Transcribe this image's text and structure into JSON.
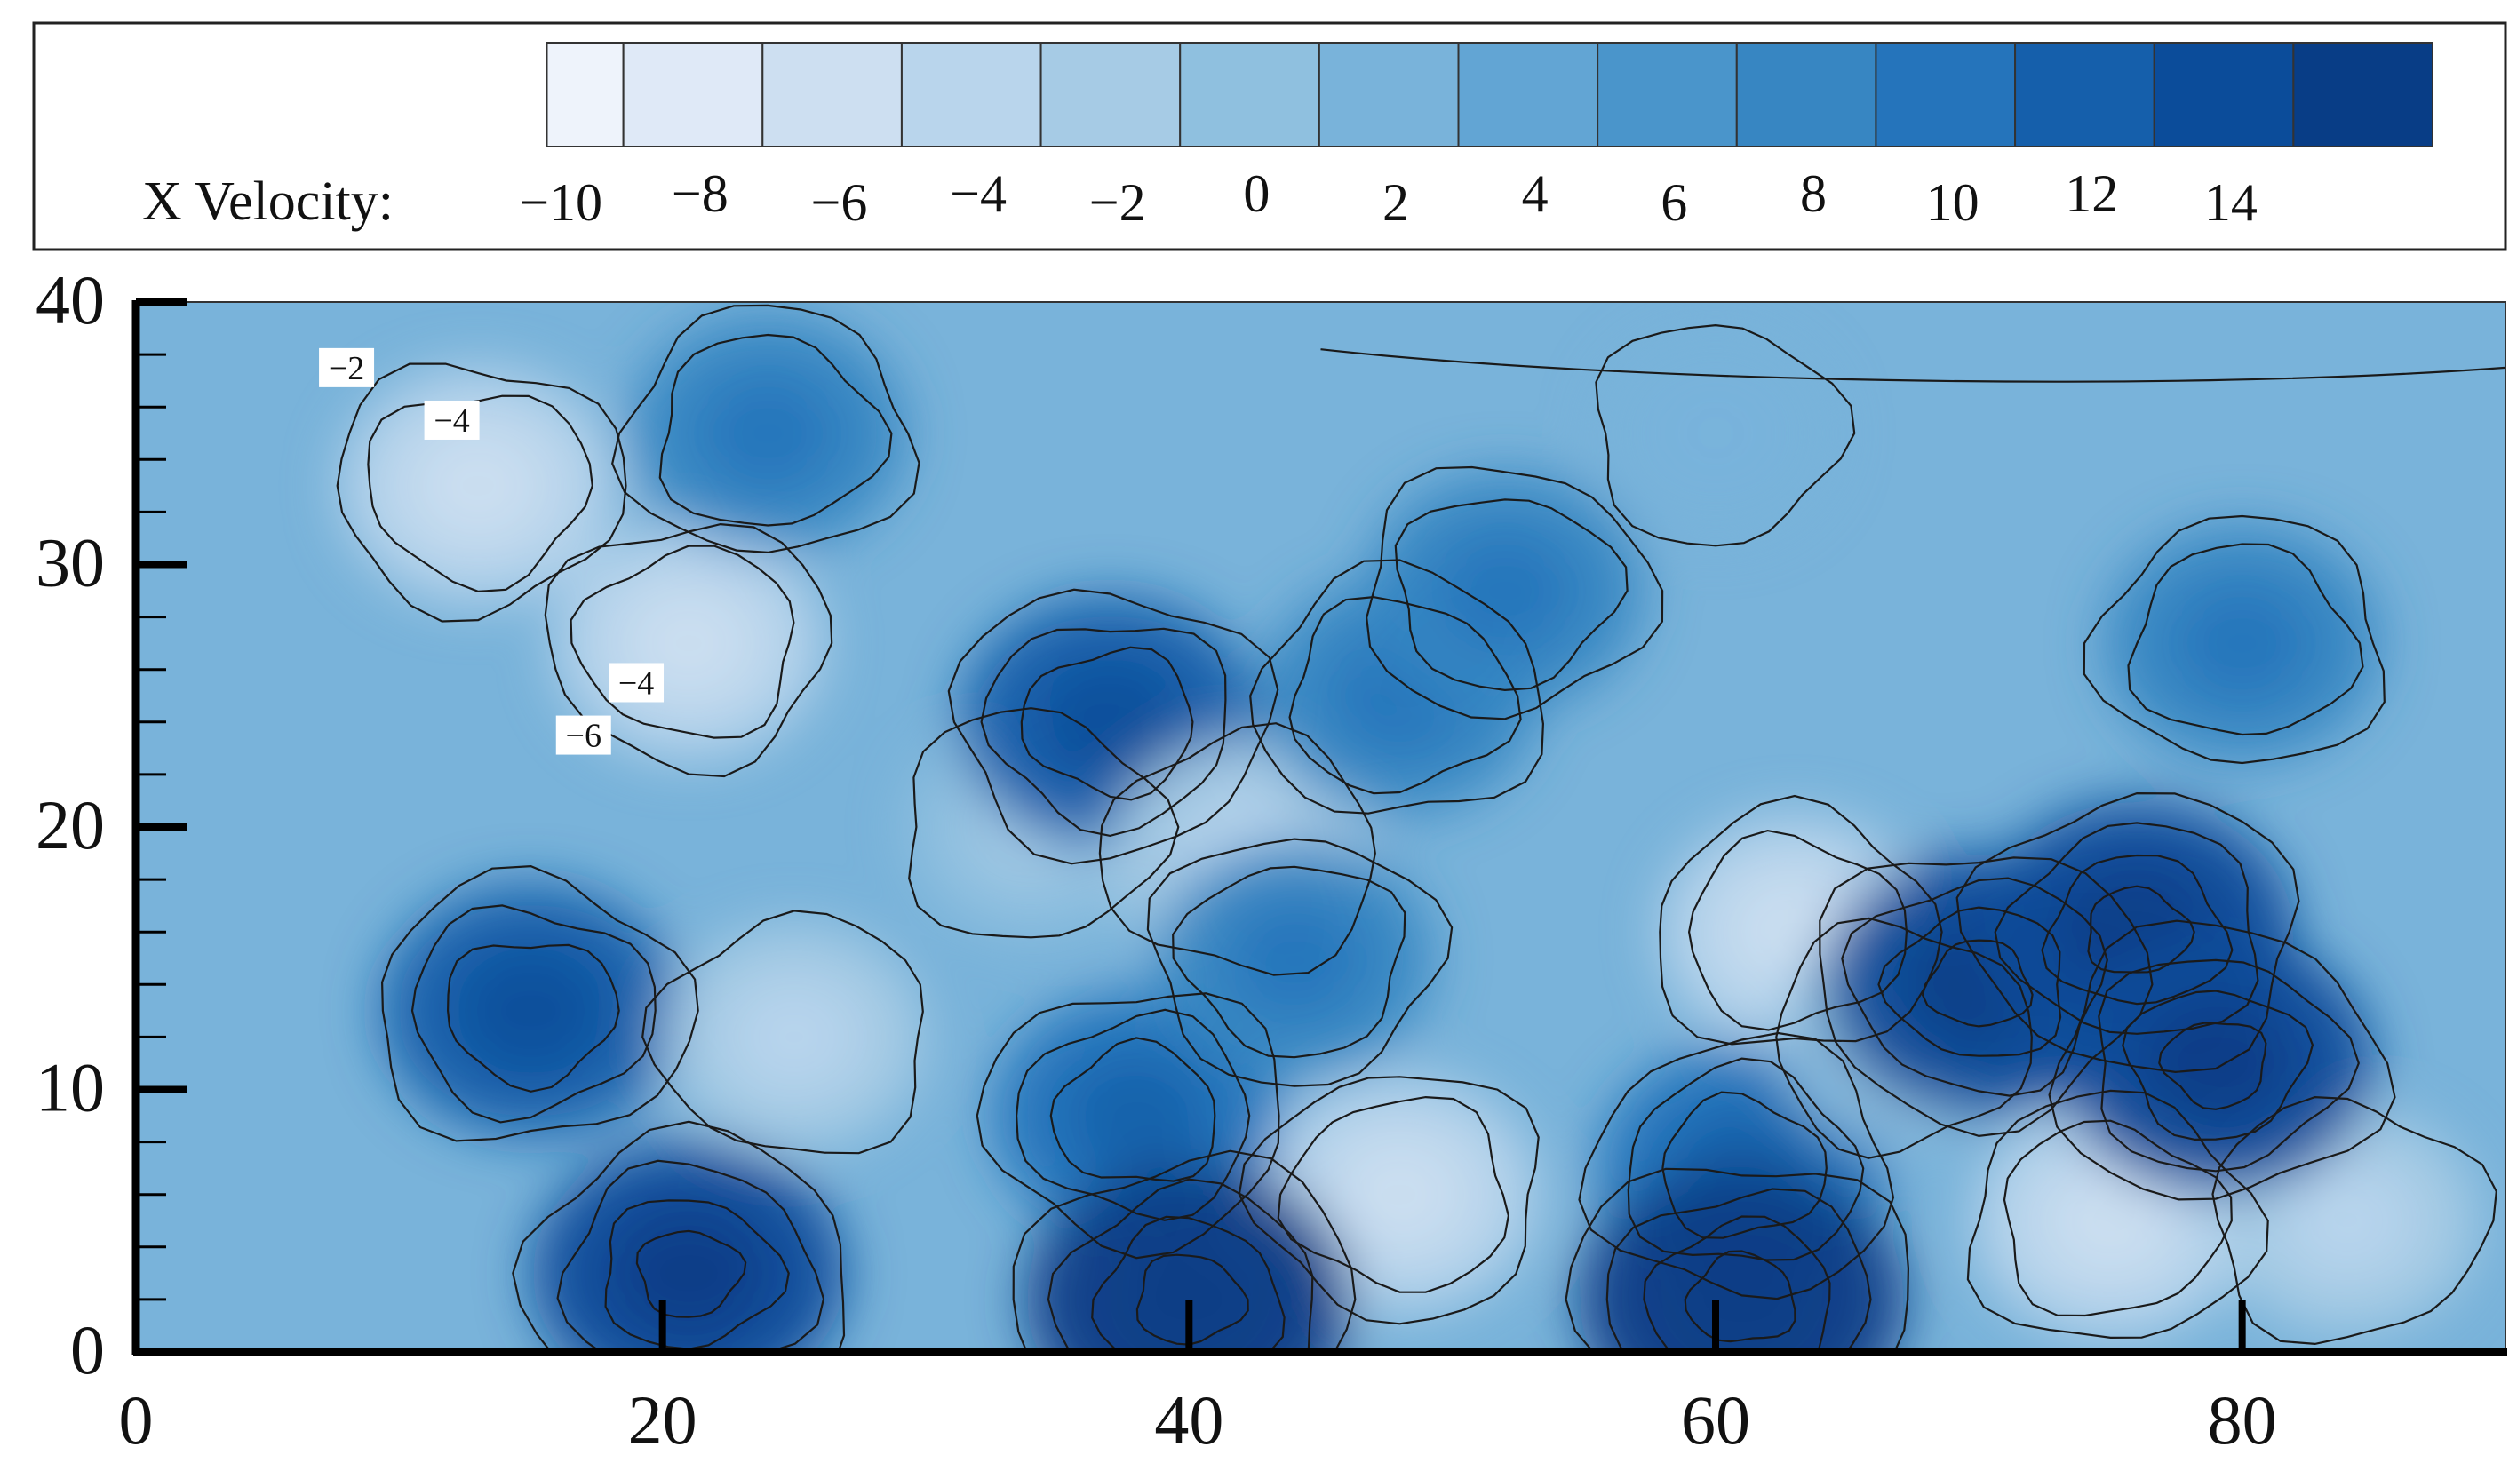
{
  "chart_data": {
    "type": "heatmap",
    "title": "",
    "xlabel": "",
    "ylabel": "",
    "xlim": [
      0,
      90
    ],
    "ylim": [
      0,
      40
    ],
    "x_ticks": [
      0,
      20,
      40,
      60,
      80
    ],
    "y_ticks": [
      0,
      10,
      20,
      30,
      40
    ],
    "colorbar": {
      "label": "X Velocity:",
      "levels": [
        -10,
        -8,
        -6,
        -4,
        -2,
        0,
        2,
        4,
        6,
        8,
        10,
        12,
        14
      ],
      "colors": [
        "#eef3fb",
        "#dfe9f7",
        "#cddff1",
        "#b9d5ec",
        "#a6cbe5",
        "#8fc0df",
        "#79b3da",
        "#62a5d4",
        "#4a95cb",
        "#3786c2",
        "#2574bb",
        "#155fab",
        "#0b4c9a",
        "#083d86"
      ]
    },
    "field_centers": [
      {
        "x": 15,
        "y": 13,
        "value": 10
      },
      {
        "x": 13,
        "y": 33,
        "value": -6
      },
      {
        "x": 21,
        "y": 27,
        "value": -5
      },
      {
        "x": 25,
        "y": 12,
        "value": -4
      },
      {
        "x": 24,
        "y": 35,
        "value": 6
      },
      {
        "x": 34,
        "y": 20,
        "value": -2
      },
      {
        "x": 37,
        "y": 24,
        "value": 10
      },
      {
        "x": 38,
        "y": 9,
        "value": 8
      },
      {
        "x": 42,
        "y": 19,
        "value": -4
      },
      {
        "x": 48,
        "y": 25,
        "value": 6
      },
      {
        "x": 52,
        "y": 29,
        "value": 6
      },
      {
        "x": 44,
        "y": 15,
        "value": 6
      },
      {
        "x": 48,
        "y": 6,
        "value": -6
      },
      {
        "x": 61,
        "y": 7,
        "value": 8
      },
      {
        "x": 63,
        "y": 16,
        "value": -5
      },
      {
        "x": 67,
        "y": 12,
        "value": -1
      },
      {
        "x": 70,
        "y": 14,
        "value": 12
      },
      {
        "x": 76,
        "y": 16,
        "value": 12
      },
      {
        "x": 80,
        "y": 27,
        "value": 6
      },
      {
        "x": 75,
        "y": 5,
        "value": -6
      },
      {
        "x": 84,
        "y": 5,
        "value": -4
      },
      {
        "x": 61,
        "y": 2,
        "value": 14
      },
      {
        "x": 40,
        "y": 2,
        "value": 14
      },
      {
        "x": 21,
        "y": 3,
        "value": 12
      },
      {
        "x": 79,
        "y": 11,
        "value": 12
      },
      {
        "x": 60,
        "y": 35,
        "value": 0
      }
    ],
    "contour_labels": [
      {
        "text": "−2",
        "x": 8,
        "y": 37.5
      },
      {
        "text": "−4",
        "x": 12,
        "y": 35.5
      },
      {
        "text": "−4",
        "x": 19,
        "y": 25.5
      },
      {
        "text": "−6",
        "x": 17,
        "y": 23.5
      }
    ]
  }
}
